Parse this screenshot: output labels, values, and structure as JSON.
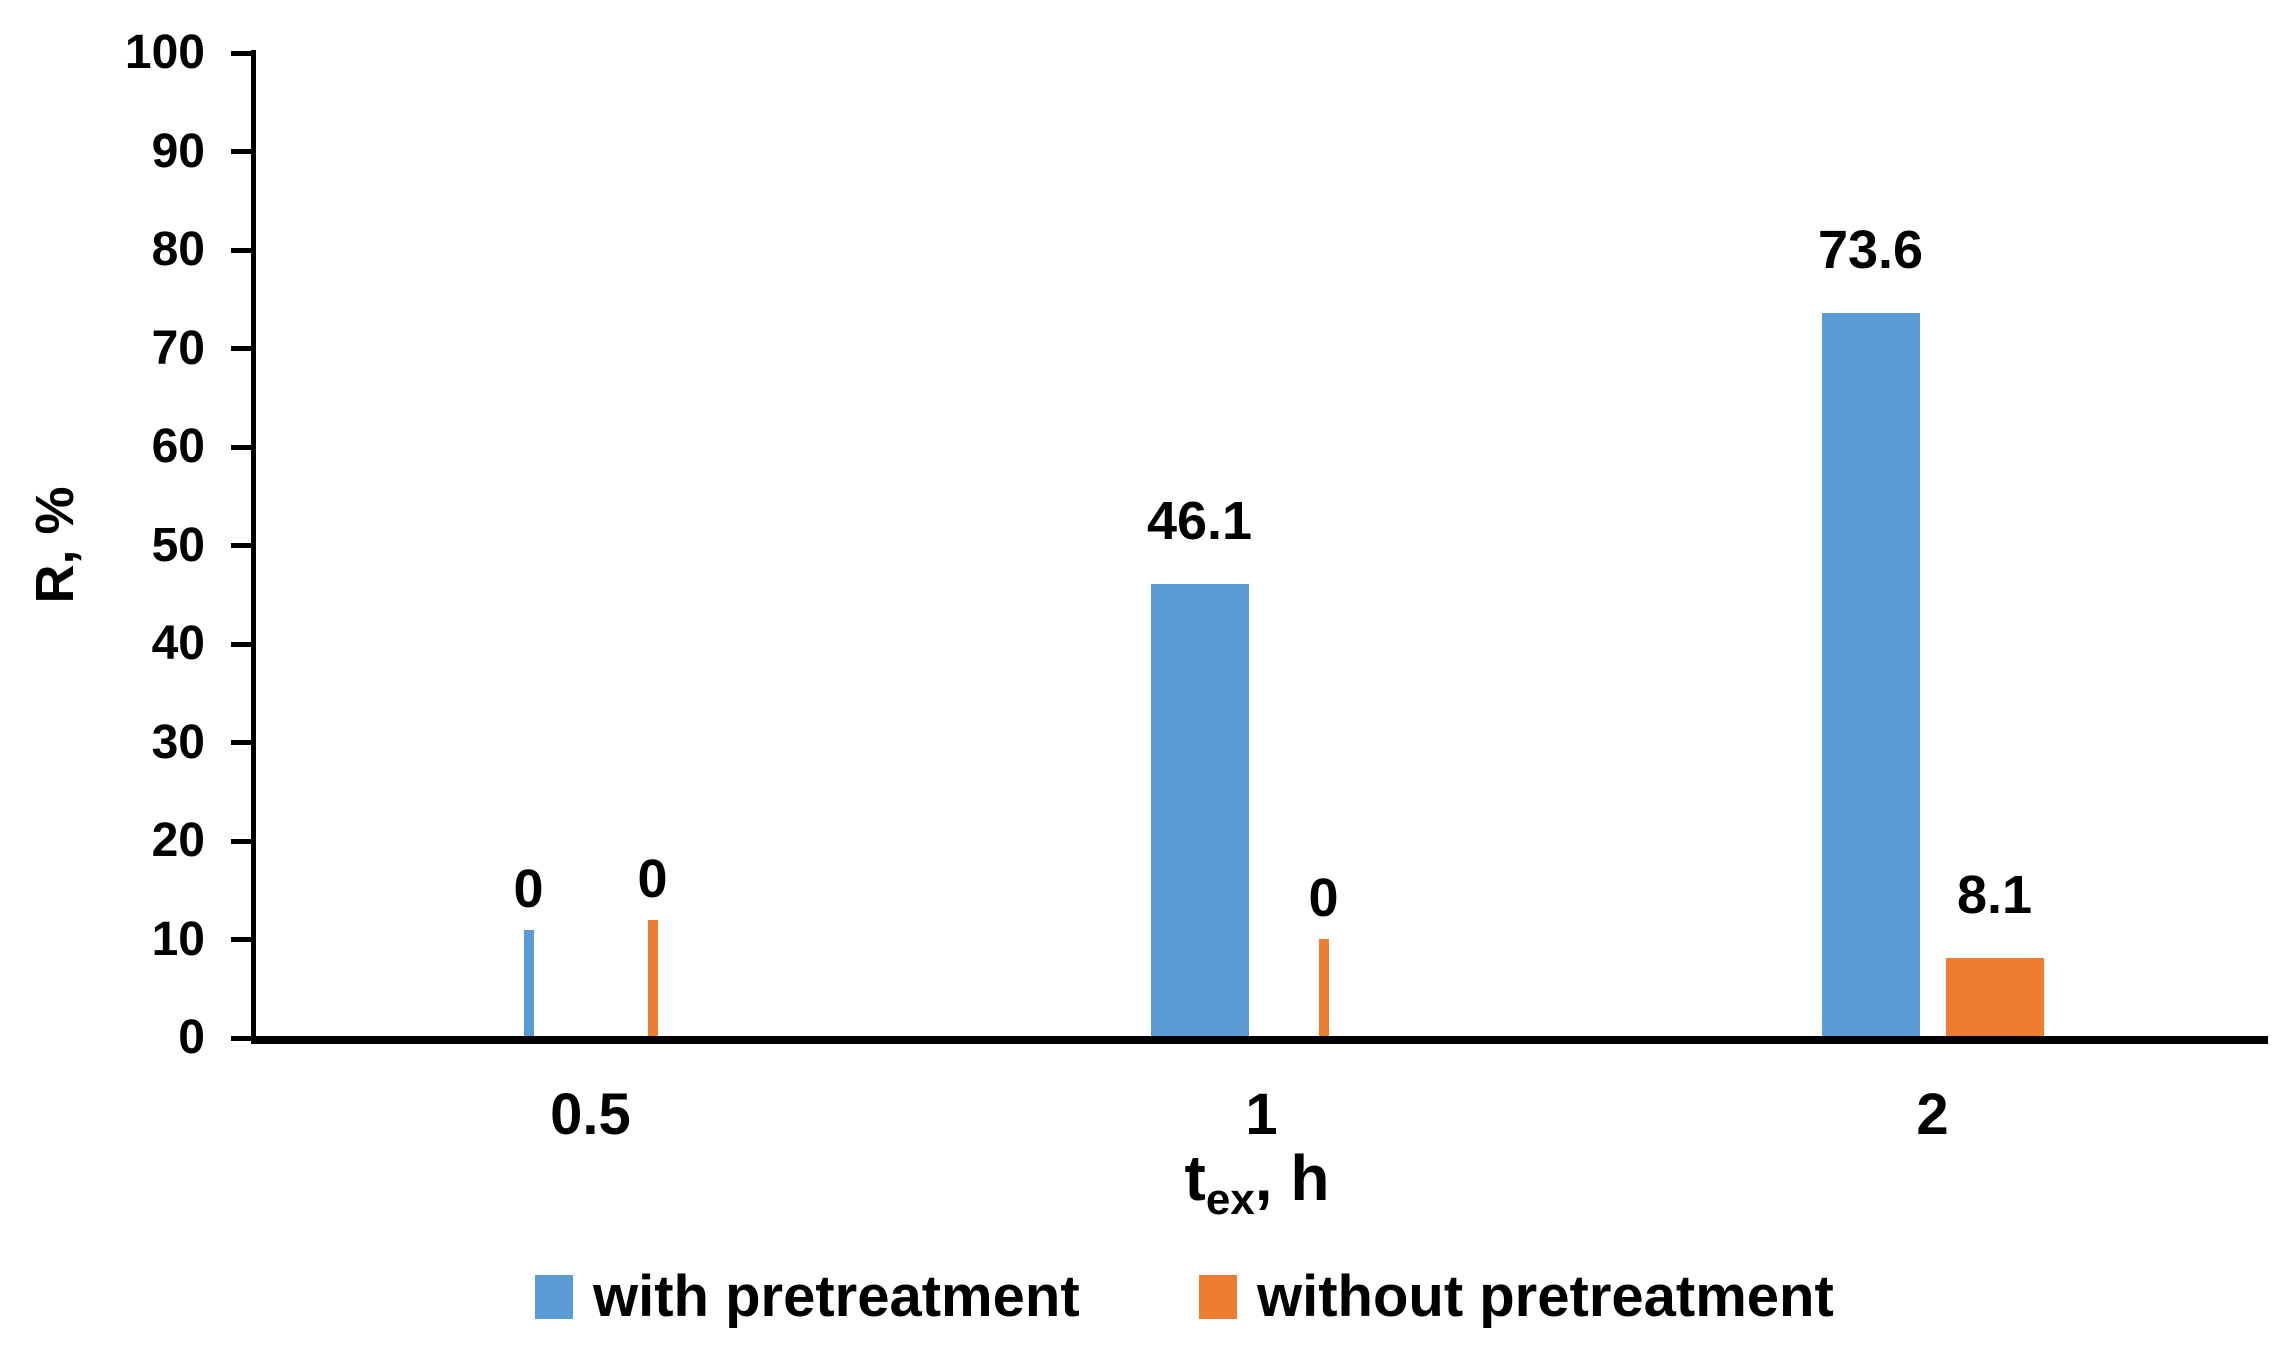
{
  "chart_data": {
    "type": "bar",
    "title": "",
    "categories": [
      "0.5",
      "1",
      "2"
    ],
    "series": [
      {
        "name": "with pretreatment",
        "color": "#5B9BD5",
        "values": [
          0,
          46.1,
          73.6
        ]
      },
      {
        "name": "without pretreatment",
        "color": "#ED7D31",
        "values": [
          0,
          0,
          8.1
        ]
      }
    ],
    "data_labels": [
      [
        "0",
        "46.1",
        "73.6"
      ],
      [
        "0",
        "0",
        "8.1"
      ]
    ],
    "xlabel": "tex, h",
    "xlabel_parts": {
      "base": "t",
      "sub": "ex",
      "rest": ", h"
    },
    "ylabel": "R, %",
    "ylim": [
      0,
      100
    ],
    "ytick_interval": 10,
    "yticks": [
      0,
      10,
      20,
      30,
      40,
      50,
      60,
      70,
      80,
      90,
      100
    ],
    "grid": false,
    "legend_position": "bottom",
    "axis_color": "#000000",
    "text_color": "#000000"
  }
}
